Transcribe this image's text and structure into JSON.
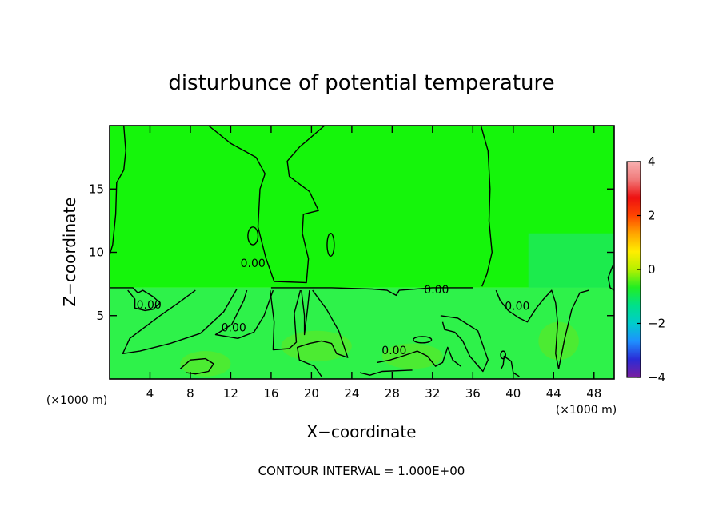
{
  "chart_data": {
    "type": "contour",
    "title": "disturbunce of potential temperature",
    "xlabel": "X−coordinate",
    "ylabel": "Z−coordinate",
    "x_unit_label": "(×1000 m)",
    "y_unit_label": "(×1000 m)",
    "xlim": [
      0,
      50
    ],
    "ylim": [
      0,
      20
    ],
    "x_ticks": [
      4,
      8,
      12,
      16,
      20,
      24,
      28,
      32,
      36,
      40,
      44,
      48
    ],
    "y_ticks": [
      5,
      10,
      15
    ],
    "colorbar": {
      "range": [
        -4,
        4
      ],
      "ticks": [
        -4,
        -2,
        0,
        2,
        4
      ],
      "tick_labels": [
        "−4",
        "−2",
        "0",
        "2",
        "4"
      ],
      "colors": [
        "#7a1fa0",
        "#2b2bd6",
        "#1e90ff",
        "#00cccc",
        "#00e08a",
        "#22ee22",
        "#b6f000",
        "#ffee00",
        "#ffa500",
        "#ff4500",
        "#ee1111",
        "#f07a7a",
        "#f8b0b0"
      ]
    },
    "field_colors": {
      "upper": "#15f50b",
      "lower": "#2ef24a",
      "patch": "#5ae828",
      "cool": "#1ee85e"
    },
    "contour_labels": [
      {
        "text": "0.00",
        "x": 3.9,
        "z": 5.8
      },
      {
        "text": "0.00",
        "x": 14.2,
        "z": 9.1
      },
      {
        "text": "0.00",
        "x": 12.3,
        "z": 4.0
      },
      {
        "text": "0.00",
        "x": 32.4,
        "z": 7.0
      },
      {
        "text": "0.00",
        "x": 28.2,
        "z": 2.2
      },
      {
        "text": "0.00",
        "x": 40.4,
        "z": 5.7
      }
    ],
    "contour_interval_text": "CONTOUR INTERVAL = 1.000E+00"
  }
}
